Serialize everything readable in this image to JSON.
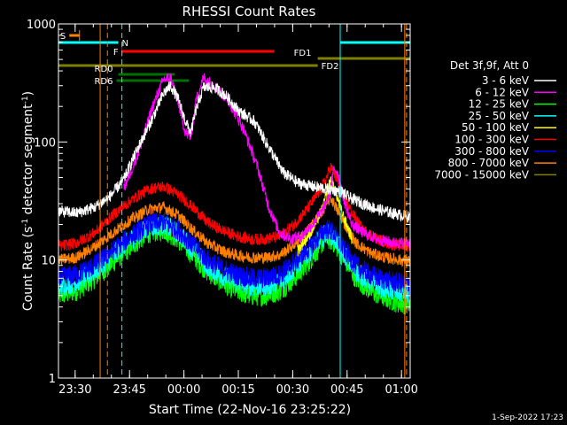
{
  "chart_data": {
    "type": "line",
    "title": "RHESSI Count Rates",
    "xlabel": "Start Time (22-Nov-16 23:25:22)",
    "ylabel": "Count Rate (s^-1 detector segment^-1)",
    "yscale": "log",
    "ylim": [
      1,
      1000
    ],
    "xlim_minutes": [
      0,
      97
    ],
    "x_ticks": [
      {
        "label": "23:30",
        "t": 4.6
      },
      {
        "label": "23:45",
        "t": 19.6
      },
      {
        "label": "00:00",
        "t": 34.6
      },
      {
        "label": "00:15",
        "t": 49.6
      },
      {
        "label": "00:30",
        "t": 64.6
      },
      {
        "label": "00:45",
        "t": 79.6
      },
      {
        "label": "01:00",
        "t": 94.6
      }
    ],
    "y_ticks": [
      {
        "label": "1",
        "v": 1
      },
      {
        "label": "10",
        "v": 10
      },
      {
        "label": "100",
        "v": 100
      },
      {
        "label": "1000",
        "v": 1000
      }
    ],
    "grid": false,
    "legend_position": "right",
    "legend_title": "Det 3f,9f, Att 0",
    "series": [
      {
        "name": "3 - 6 keV",
        "color": "#ffffff",
        "points": [
          [
            0,
            26
          ],
          [
            5,
            25
          ],
          [
            10,
            28
          ],
          [
            14,
            34
          ],
          [
            18,
            48
          ],
          [
            22,
            90
          ],
          [
            26,
            160
          ],
          [
            29,
            260
          ],
          [
            31,
            300
          ],
          [
            33,
            230
          ],
          [
            35,
            150
          ],
          [
            36.5,
            120
          ],
          [
            38,
            190
          ],
          [
            40,
            290
          ],
          [
            43,
            290
          ],
          [
            46,
            250
          ],
          [
            50,
            180
          ],
          [
            54,
            150
          ],
          [
            58,
            90
          ],
          [
            62,
            55
          ],
          [
            66,
            45
          ],
          [
            70,
            42
          ],
          [
            74,
            40
          ],
          [
            78,
            38
          ],
          [
            80,
            34
          ],
          [
            84,
            30
          ],
          [
            88,
            27
          ],
          [
            92,
            25
          ],
          [
            97,
            23
          ]
        ]
      },
      {
        "name": "6 - 12 keV",
        "color": "#ff00ff",
        "points": [
          [
            18,
            40
          ],
          [
            22,
            80
          ],
          [
            26,
            200
          ],
          [
            29,
            340
          ],
          [
            31,
            350
          ],
          [
            33,
            220
          ],
          [
            35,
            120
          ],
          [
            36.5,
            110
          ],
          [
            38,
            230
          ],
          [
            40,
            350
          ],
          [
            43,
            300
          ],
          [
            47,
            220
          ],
          [
            51,
            130
          ],
          [
            55,
            60
          ],
          [
            58,
            28
          ],
          [
            61,
            17
          ],
          [
            64,
            15
          ],
          [
            67,
            16
          ],
          [
            70,
            20
          ],
          [
            73,
            27
          ],
          [
            75,
            38
          ],
          [
            76,
            60
          ],
          [
            77,
            55
          ],
          [
            79,
            30
          ],
          [
            81,
            20
          ],
          [
            84,
            17
          ],
          [
            88,
            15
          ],
          [
            92,
            14
          ],
          [
            97,
            14
          ]
        ]
      },
      {
        "name": "12 - 25 keV",
        "color": "#00ff00",
        "points": [
          [
            0,
            5.0
          ],
          [
            5,
            5.5
          ],
          [
            10,
            7
          ],
          [
            15,
            9.5
          ],
          [
            20,
            13
          ],
          [
            25,
            17
          ],
          [
            29,
            18
          ],
          [
            33,
            15
          ],
          [
            37,
            11
          ],
          [
            41,
            8
          ],
          [
            45,
            6.5
          ],
          [
            49,
            5.5
          ],
          [
            53,
            5
          ],
          [
            57,
            5
          ],
          [
            61,
            5.5
          ],
          [
            65,
            7
          ],
          [
            69,
            9.5
          ],
          [
            72,
            13
          ],
          [
            74,
            15.5
          ],
          [
            76,
            14
          ],
          [
            79,
            10
          ],
          [
            82,
            7
          ],
          [
            86,
            5.5
          ],
          [
            90,
            4.8
          ],
          [
            94,
            4.3
          ],
          [
            97,
            4.2
          ]
        ]
      },
      {
        "name": "25 - 50 keV",
        "color": "#00ffff",
        "points": [
          [
            0,
            6
          ],
          [
            5,
            6.5
          ],
          [
            10,
            8
          ],
          [
            15,
            11
          ],
          [
            20,
            15
          ],
          [
            25,
            19
          ],
          [
            29,
            20
          ],
          [
            33,
            17
          ],
          [
            37,
            12.5
          ],
          [
            41,
            9
          ],
          [
            45,
            7.5
          ],
          [
            49,
            6.5
          ],
          [
            53,
            6
          ],
          [
            57,
            6
          ],
          [
            61,
            6.5
          ],
          [
            65,
            8.5
          ],
          [
            69,
            11.5
          ],
          [
            72,
            15
          ],
          [
            74,
            17
          ],
          [
            76,
            15.5
          ],
          [
            79,
            11
          ],
          [
            82,
            8
          ],
          [
            86,
            6.5
          ],
          [
            90,
            5.8
          ],
          [
            94,
            5.3
          ],
          [
            97,
            5.2
          ]
        ]
      },
      {
        "name": "50 - 100 keV",
        "color": "#ffff00",
        "points": [
          [
            66,
            12
          ],
          [
            70,
            18
          ],
          [
            73,
            28
          ],
          [
            75,
            48
          ],
          [
            76,
            42
          ],
          [
            78,
            26
          ],
          [
            81,
            15
          ]
        ]
      },
      {
        "name": "100 - 300 keV",
        "color": "#ff0000",
        "points": [
          [
            0,
            13
          ],
          [
            5,
            14
          ],
          [
            10,
            17
          ],
          [
            15,
            24
          ],
          [
            20,
            32
          ],
          [
            25,
            40
          ],
          [
            29,
            42
          ],
          [
            33,
            36
          ],
          [
            37,
            28
          ],
          [
            41,
            21
          ],
          [
            45,
            18
          ],
          [
            49,
            16
          ],
          [
            53,
            15
          ],
          [
            57,
            15
          ],
          [
            61,
            16
          ],
          [
            65,
            20
          ],
          [
            69,
            28
          ],
          [
            72,
            38
          ],
          [
            74,
            50
          ],
          [
            75,
            62
          ],
          [
            76,
            55
          ],
          [
            78,
            38
          ],
          [
            81,
            25
          ],
          [
            84,
            18
          ],
          [
            88,
            15
          ],
          [
            92,
            13.5
          ],
          [
            97,
            13
          ]
        ]
      },
      {
        "name": "300 - 800 keV",
        "color": "#0000ff",
        "points": [
          [
            0,
            7
          ],
          [
            5,
            7.5
          ],
          [
            10,
            9
          ],
          [
            15,
            12
          ],
          [
            20,
            16
          ],
          [
            25,
            20
          ],
          [
            29,
            21
          ],
          [
            33,
            18
          ],
          [
            37,
            13.5
          ],
          [
            41,
            10
          ],
          [
            45,
            8.5
          ],
          [
            49,
            7.5
          ],
          [
            53,
            7
          ],
          [
            57,
            7
          ],
          [
            61,
            7.5
          ],
          [
            65,
            9.5
          ],
          [
            69,
            12.5
          ],
          [
            72,
            16
          ],
          [
            74,
            18.5
          ],
          [
            76,
            17
          ],
          [
            79,
            12
          ],
          [
            82,
            9
          ],
          [
            86,
            7.5
          ],
          [
            90,
            6.8
          ],
          [
            94,
            6.4
          ],
          [
            97,
            6.2
          ]
        ]
      },
      {
        "name": "800 - 7000 keV",
        "color": "#ff8000",
        "points": [
          [
            0,
            10
          ],
          [
            5,
            10.5
          ],
          [
            10,
            13
          ],
          [
            15,
            17
          ],
          [
            20,
            22
          ],
          [
            25,
            27
          ],
          [
            29,
            28
          ],
          [
            33,
            24
          ],
          [
            37,
            18
          ],
          [
            41,
            14
          ],
          [
            45,
            12
          ],
          [
            49,
            11
          ],
          [
            53,
            10.5
          ],
          [
            57,
            10.5
          ],
          [
            61,
            11
          ],
          [
            65,
            13.5
          ],
          [
            69,
            18
          ],
          [
            72,
            24
          ],
          [
            74,
            30
          ],
          [
            75,
            34
          ],
          [
            76,
            30
          ],
          [
            79,
            20
          ],
          [
            82,
            14
          ],
          [
            86,
            11.5
          ],
          [
            90,
            10.5
          ],
          [
            94,
            10
          ],
          [
            97,
            9.8
          ]
        ]
      },
      {
        "name": "7000 - 15000 keV",
        "color": "#808000",
        "points": []
      }
    ],
    "flag_bars": [
      {
        "label": "S",
        "color": "#ff8000",
        "t0": 3.0,
        "t1": 5.8,
        "label_side": "left"
      },
      {
        "label": "N",
        "color": "#00ffff",
        "t0": 0,
        "t1": 16.5,
        "label_side": "right"
      },
      {
        "label": "N",
        "color": "#00ffff",
        "t0": 77.7,
        "t1": 97,
        "label_side": "none"
      },
      {
        "label": "F",
        "color": "#ff0000",
        "t0": 17.5,
        "t1": 59.5,
        "label_side": "left"
      },
      {
        "label": "FD1",
        "color": "#808000",
        "t0": 71.5,
        "t1": 97,
        "label_side": "above"
      },
      {
        "label": "FD2",
        "color": "#808000",
        "t0": 0,
        "t1": 71.5,
        "label_side": "right"
      },
      {
        "label": "RD0",
        "color": "#007000",
        "t0": 16.5,
        "t1": 32,
        "label_side": "above"
      },
      {
        "label": "RD6",
        "color": "#007000",
        "t0": 16,
        "t1": 36,
        "label_side": "left"
      }
    ],
    "vertical_markers": [
      {
        "t": 11.5,
        "color": "#ff8000",
        "style": "solid"
      },
      {
        "t": 13.5,
        "color": "#ff8000",
        "style": "dashed"
      },
      {
        "t": 17.5,
        "color": "#00ffff",
        "style": "dashed"
      },
      {
        "t": 77.7,
        "color": "#00ffff",
        "style": "solid"
      },
      {
        "t": 95.5,
        "color": "#ff8000",
        "style": "solid"
      },
      {
        "t": 96.0,
        "color": "#ff8000",
        "style": "dashed"
      }
    ],
    "footer_text": "1-Sep-2022 17:23"
  }
}
